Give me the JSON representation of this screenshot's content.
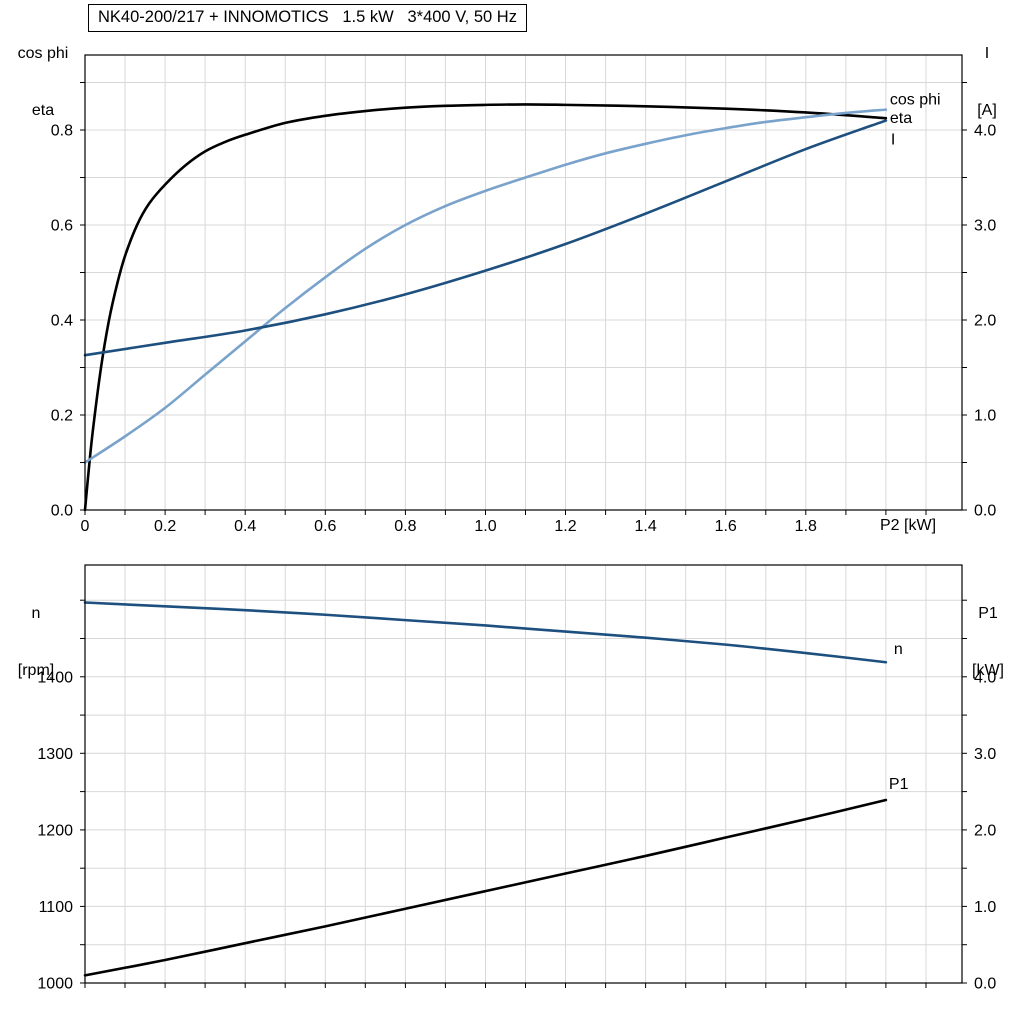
{
  "title_box": "NK40-200/217 + INNOMOTICS   1.5 kW   3*400 V, 50 Hz",
  "colors": {
    "eta": "#000000",
    "cos_phi": "#7AA3CC",
    "current": "#1D4F7F",
    "speed": "#1D4F7F",
    "p1": "#000000",
    "grid": "#d8d8d8",
    "frame": "#000000"
  },
  "chart_data": [
    {
      "type": "line",
      "x_axis": {
        "label": "P2 [kW]",
        "min": 0,
        "max": 2.19,
        "minor_step": 0.1,
        "ticks": [
          {
            "v": 0,
            "t": "0"
          },
          {
            "v": 0.2,
            "t": "0.2"
          },
          {
            "v": 0.4,
            "t": "0.4"
          },
          {
            "v": 0.6,
            "t": "0.6"
          },
          {
            "v": 0.8,
            "t": "0.8"
          },
          {
            "v": 1.0,
            "t": "1.0"
          },
          {
            "v": 1.2,
            "t": "1.2"
          },
          {
            "v": 1.4,
            "t": "1.4"
          },
          {
            "v": 1.6,
            "t": "1.6"
          },
          {
            "v": 1.8,
            "t": "1.8"
          }
        ]
      },
      "left_axis": {
        "label_lines": [
          "cos phi",
          "eta"
        ],
        "min": 0,
        "max": 0.958,
        "minor_step": 0.1,
        "ticks": [
          {
            "v": 0.0,
            "t": "0.0"
          },
          {
            "v": 0.2,
            "t": "0.2"
          },
          {
            "v": 0.4,
            "t": "0.4"
          },
          {
            "v": 0.6,
            "t": "0.6"
          },
          {
            "v": 0.8,
            "t": "0.8"
          }
        ]
      },
      "right_axis": {
        "label_lines": [
          "I",
          "[A]"
        ],
        "min": 0,
        "max": 4.79,
        "minor_step": 0.5,
        "ticks": [
          {
            "v": 0,
            "t": "0.0"
          },
          {
            "v": 1,
            "t": "1.0"
          },
          {
            "v": 2,
            "t": "2.0"
          },
          {
            "v": 3,
            "t": "3.0"
          },
          {
            "v": 4,
            "t": "4.0"
          }
        ]
      },
      "series": [
        {
          "name": "eta",
          "axis": "left",
          "color": "#000000",
          "width": 2.6,
          "x": [
            0,
            0.01,
            0.02,
            0.04,
            0.06,
            0.08,
            0.1,
            0.13,
            0.16,
            0.2,
            0.25,
            0.3,
            0.35,
            0.4,
            0.5,
            0.6,
            0.7,
            0.8,
            0.9,
            1.0,
            1.1,
            1.2,
            1.4,
            1.6,
            1.8,
            2.0
          ],
          "y": [
            0,
            0.09,
            0.17,
            0.3,
            0.4,
            0.475,
            0.535,
            0.6,
            0.645,
            0.685,
            0.725,
            0.755,
            0.775,
            0.79,
            0.815,
            0.83,
            0.84,
            0.847,
            0.851,
            0.853,
            0.854,
            0.853,
            0.85,
            0.845,
            0.837,
            0.825
          ],
          "label": {
            "text": "eta",
            "dx": 4,
            "dy": 5
          }
        },
        {
          "name": "cos phi",
          "axis": "left",
          "color": "#7AA3CC",
          "width": 2.6,
          "x": [
            0,
            0.1,
            0.2,
            0.3,
            0.4,
            0.5,
            0.6,
            0.7,
            0.8,
            0.9,
            1.0,
            1.1,
            1.2,
            1.3,
            1.4,
            1.5,
            1.6,
            1.7,
            1.8,
            1.9,
            2.0
          ],
          "y": [
            0.1,
            0.155,
            0.215,
            0.285,
            0.355,
            0.425,
            0.49,
            0.55,
            0.6,
            0.64,
            0.672,
            0.7,
            0.727,
            0.751,
            0.771,
            0.789,
            0.804,
            0.817,
            0.827,
            0.836,
            0.843
          ],
          "label": {
            "text": "cos phi",
            "dx": 4,
            "dy": -5
          }
        },
        {
          "name": "I",
          "axis": "right",
          "color": "#1D4F7F",
          "width": 2.6,
          "x": [
            0,
            0.2,
            0.4,
            0.6,
            0.8,
            1.0,
            1.2,
            1.4,
            1.6,
            1.8,
            2.0
          ],
          "y": [
            1.63,
            1.76,
            1.89,
            2.06,
            2.27,
            2.52,
            2.8,
            3.12,
            3.46,
            3.8,
            4.1
          ],
          "label": {
            "text": "I",
            "dx": 5,
            "dy": 24
          }
        }
      ]
    },
    {
      "type": "line",
      "x_axis": {
        "label": "",
        "min": 0,
        "max": 2.19,
        "minor_step": 0.1,
        "ticks": []
      },
      "left_axis": {
        "label_lines": [
          "n",
          "[rpm]"
        ],
        "min": 1000,
        "max": 1546,
        "minor_step": 50,
        "ticks": [
          {
            "v": 1000,
            "t": "1000"
          },
          {
            "v": 1100,
            "t": "1100"
          },
          {
            "v": 1200,
            "t": "1200"
          },
          {
            "v": 1300,
            "t": "1300"
          },
          {
            "v": 1400,
            "t": "1400"
          }
        ]
      },
      "right_axis": {
        "label_lines": [
          "P1",
          "[kW]"
        ],
        "min": 0,
        "max": 5.46,
        "minor_step": 0.5,
        "ticks": [
          {
            "v": 0,
            "t": "0.0"
          },
          {
            "v": 1,
            "t": "1.0"
          },
          {
            "v": 2,
            "t": "2.0"
          },
          {
            "v": 3,
            "t": "3.0"
          },
          {
            "v": 4,
            "t": "4.0"
          }
        ]
      },
      "series": [
        {
          "name": "n",
          "axis": "left",
          "color": "#1D4F7F",
          "width": 2.6,
          "x": [
            0,
            0.2,
            0.4,
            0.6,
            0.8,
            1.0,
            1.2,
            1.4,
            1.6,
            1.8,
            2.0
          ],
          "y": [
            1497,
            1492,
            1487,
            1481,
            1474,
            1467,
            1459,
            1451,
            1442,
            1431,
            1419
          ],
          "label": {
            "text": "n",
            "dx": 8,
            "dy": -8
          }
        },
        {
          "name": "P1",
          "axis": "right",
          "color": "#000000",
          "width": 2.6,
          "x": [
            0,
            0.2,
            0.4,
            0.6,
            0.8,
            1.0,
            1.2,
            1.4,
            1.6,
            1.8,
            2.0
          ],
          "y": [
            0.1,
            0.3,
            0.52,
            0.74,
            0.97,
            1.2,
            1.43,
            1.66,
            1.9,
            2.14,
            2.39
          ],
          "label": {
            "text": "P1",
            "dx": 3,
            "dy": -11
          }
        }
      ]
    }
  ]
}
